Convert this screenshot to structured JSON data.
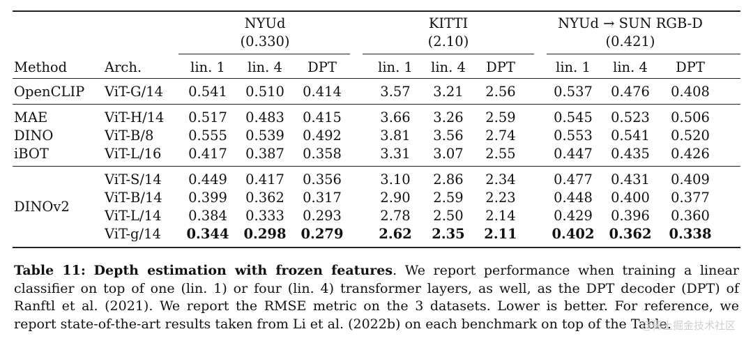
{
  "table": {
    "header": {
      "groups": [
        {
          "name": "NYUd",
          "ref": "(0.330)"
        },
        {
          "name": "KITTI",
          "ref": "(2.10)"
        },
        {
          "name": "NYUd → SUN RGB-D",
          "ref": "(0.421)"
        }
      ],
      "method": "Method",
      "arch": "Arch.",
      "subcols": [
        "lin. 1",
        "lin. 4",
        "DPT",
        "lin. 1",
        "lin. 4",
        "DPT",
        "lin. 1",
        "lin. 4",
        "DPT"
      ]
    },
    "rows": [
      {
        "method": "OpenCLIP",
        "arch": "ViT-G/14",
        "values": [
          "0.541",
          "0.510",
          "0.414",
          "3.57",
          "3.21",
          "2.56",
          "0.537",
          "0.476",
          "0.408"
        ],
        "bold": false
      },
      {
        "method": "MAE",
        "arch": "ViT-H/14",
        "values": [
          "0.517",
          "0.483",
          "0.415",
          "3.66",
          "3.26",
          "2.59",
          "0.545",
          "0.523",
          "0.506"
        ],
        "bold": false
      },
      {
        "method": "DINO",
        "arch": "ViT-B/8",
        "values": [
          "0.555",
          "0.539",
          "0.492",
          "3.81",
          "3.56",
          "2.74",
          "0.553",
          "0.541",
          "0.520"
        ],
        "bold": false
      },
      {
        "method": "iBOT",
        "arch": "ViT-L/16",
        "values": [
          "0.417",
          "0.387",
          "0.358",
          "3.31",
          "3.07",
          "2.55",
          "0.447",
          "0.435",
          "0.426"
        ],
        "bold": false
      },
      {
        "method": "",
        "arch": "ViT-S/14",
        "values": [
          "0.449",
          "0.417",
          "0.356",
          "3.10",
          "2.86",
          "2.34",
          "0.477",
          "0.431",
          "0.409"
        ],
        "bold": false
      },
      {
        "method": "DINOv2",
        "arch": "ViT-B/14",
        "values": [
          "0.399",
          "0.362",
          "0.317",
          "2.90",
          "2.59",
          "2.23",
          "0.448",
          "0.400",
          "0.377"
        ],
        "bold": false
      },
      {
        "method": "",
        "arch": "ViT-L/14",
        "values": [
          "0.384",
          "0.333",
          "0.293",
          "2.78",
          "2.50",
          "2.14",
          "0.429",
          "0.396",
          "0.360"
        ],
        "bold": false
      },
      {
        "method": "",
        "arch": "ViT-g/14",
        "values": [
          "0.344",
          "0.298",
          "0.279",
          "2.62",
          "2.35",
          "2.11",
          "0.402",
          "0.362",
          "0.338"
        ],
        "bold": true
      }
    ]
  },
  "caption": {
    "label": "Table 11:",
    "title": "Depth estimation with frozen features",
    "lines": [
      ". We report performance when training a linear",
      "classifier on top of one (lin. 1) or four (lin. 4) transformer layers, as well, as the DPT decoder (DPT) of",
      "Ranftl et al. (2021). We report the RMSE metric on the 3 datasets. Lower is better. For reference, we",
      "report state-of-the-art results taken from Li et al. (2022b) on each benchmark on top of the Table."
    ]
  },
  "watermark": "@稀土掘金技术社区"
}
